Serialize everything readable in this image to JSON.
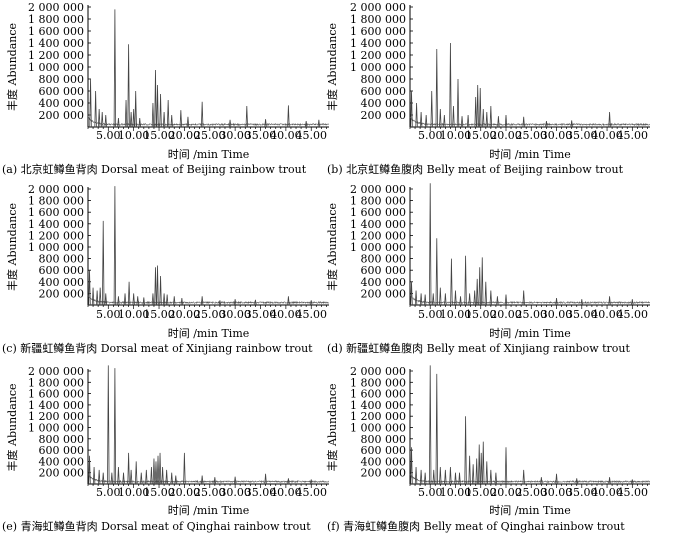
{
  "figure": {
    "y_axis_label": "丰度 Abundance",
    "x_axis_label": "时间 /min Time"
  },
  "chart_data": [
    {
      "type": "line",
      "caption": "(a) 北京虹鳟鱼背肉 Dorsal meat of Beijing rainbow trout",
      "xlabel": "时间 /min Time",
      "ylabel": "丰度 Abundance",
      "xlim": [
        1,
        48.5
      ],
      "ylim": [
        0,
        2000000
      ],
      "x_ticks": [
        "5.00",
        "10.00",
        "15.00",
        "20.00",
        "25.00",
        "30.00",
        "35.00",
        "40.00",
        "45.00"
      ],
      "y_ticks": [
        "200 000",
        "400 000",
        "600 000",
        "800 000",
        "1 000 000",
        "1 200 000",
        "1 400 000",
        "1 600 000",
        "1 800 000",
        "2 000 000"
      ],
      "grid": false,
      "peaks": [
        [
          1.5,
          800000
        ],
        [
          2.5,
          600000
        ],
        [
          3.2,
          300000
        ],
        [
          3.8,
          250000
        ],
        [
          4.5,
          200000
        ],
        [
          6.3,
          1960000
        ],
        [
          7.0,
          150000
        ],
        [
          8.5,
          450000
        ],
        [
          9.0,
          1380000
        ],
        [
          9.5,
          250000
        ],
        [
          10.0,
          300000
        ],
        [
          10.4,
          600000
        ],
        [
          11.2,
          150000
        ],
        [
          13.8,
          400000
        ],
        [
          14.3,
          950000
        ],
        [
          14.7,
          700000
        ],
        [
          15.3,
          550000
        ],
        [
          16.0,
          250000
        ],
        [
          16.8,
          450000
        ],
        [
          17.5,
          200000
        ],
        [
          19.3,
          280000
        ],
        [
          20.7,
          170000
        ],
        [
          23.5,
          420000
        ],
        [
          29.0,
          120000
        ],
        [
          32.3,
          350000
        ],
        [
          36.0,
          130000
        ],
        [
          40.5,
          360000
        ],
        [
          44.0,
          100000
        ],
        [
          46.5,
          120000
        ]
      ]
    },
    {
      "type": "line",
      "caption": "(b) 北京虹鳟鱼腹肉 Belly meat of Beijing rainbow trout",
      "xlabel": "时间 /min Time",
      "ylabel": "丰度 Abundance",
      "xlim": [
        1,
        48.5
      ],
      "ylim": [
        0,
        2000000
      ],
      "x_ticks": [
        "5.00",
        "10.00",
        "15.00",
        "20.00",
        "25.00",
        "30.00",
        "35.00",
        "40.00",
        "45.00"
      ],
      "y_ticks": [
        "200 000",
        "400 000",
        "600 000",
        "800 000",
        "1 000 000",
        "1 200 000",
        "1 400 000",
        "1 600 000",
        "1 800 000",
        "2 000 000"
      ],
      "grid": false,
      "peaks": [
        [
          1.3,
          600000
        ],
        [
          2.3,
          400000
        ],
        [
          3.2,
          250000
        ],
        [
          4.2,
          200000
        ],
        [
          5.3,
          600000
        ],
        [
          6.3,
          1300000
        ],
        [
          7.0,
          300000
        ],
        [
          7.8,
          200000
        ],
        [
          9.0,
          1400000
        ],
        [
          9.6,
          350000
        ],
        [
          10.5,
          800000
        ],
        [
          11.3,
          180000
        ],
        [
          12.5,
          200000
        ],
        [
          14.0,
          500000
        ],
        [
          14.4,
          700000
        ],
        [
          14.9,
          650000
        ],
        [
          15.5,
          300000
        ],
        [
          16.2,
          250000
        ],
        [
          17.0,
          350000
        ],
        [
          18.5,
          180000
        ],
        [
          20.0,
          200000
        ],
        [
          23.5,
          170000
        ],
        [
          28.0,
          100000
        ],
        [
          33.0,
          110000
        ],
        [
          40.5,
          250000
        ]
      ]
    },
    {
      "type": "line",
      "caption": "(c) 新疆虹鳟鱼背肉 Dorsal meat of Xinjiang rainbow trout",
      "xlabel": "时间 /min Time",
      "ylabel": "丰度 Abundance",
      "xlim": [
        1,
        48.5
      ],
      "ylim": [
        0,
        2000000
      ],
      "x_ticks": [
        "5.00",
        "10.00",
        "15.00",
        "20.00",
        "25.00",
        "30.00",
        "35.00",
        "40.00",
        "45.00"
      ],
      "y_ticks": [
        "200 000",
        "400 000",
        "600 000",
        "800 000",
        "1 000 000",
        "1 200 000",
        "1 400 000",
        "1 600 000",
        "1 800 000",
        "2 000 000"
      ],
      "grid": false,
      "peaks": [
        [
          1.3,
          600000
        ],
        [
          2.0,
          300000
        ],
        [
          2.8,
          250000
        ],
        [
          3.4,
          300000
        ],
        [
          4.0,
          1450000
        ],
        [
          4.5,
          200000
        ],
        [
          6.3,
          2050000
        ],
        [
          7.0,
          150000
        ],
        [
          8.3,
          200000
        ],
        [
          9.1,
          400000
        ],
        [
          10.0,
          200000
        ],
        [
          10.8,
          150000
        ],
        [
          12.0,
          130000
        ],
        [
          13.8,
          200000
        ],
        [
          14.3,
          650000
        ],
        [
          14.7,
          680000
        ],
        [
          15.3,
          500000
        ],
        [
          16.0,
          200000
        ],
        [
          16.6,
          180000
        ],
        [
          18.0,
          150000
        ],
        [
          19.5,
          120000
        ],
        [
          23.5,
          150000
        ],
        [
          27.0,
          80000
        ],
        [
          30.0,
          100000
        ],
        [
          34.0,
          90000
        ],
        [
          40.5,
          150000
        ],
        [
          45.0,
          80000
        ]
      ]
    },
    {
      "type": "line",
      "caption": "(d) 新疆虹鳟鱼腹肉 Belly meat of Xinjiang rainbow trout",
      "xlabel": "时间 /min Time",
      "ylabel": "丰度 Abundance",
      "xlim": [
        1,
        48.5
      ],
      "ylim": [
        0,
        2000000
      ],
      "x_ticks": [
        "5.00",
        "10.00",
        "15.00",
        "20.00",
        "25.00",
        "30.00",
        "35.00",
        "40.00",
        "45.00"
      ],
      "y_ticks": [
        "200 000",
        "400 000",
        "600 000",
        "800 000",
        "1 000 000",
        "1 200 000",
        "1 400 000",
        "1 600 000",
        "1 800 000",
        "2 000 000"
      ],
      "grid": false,
      "peaks": [
        [
          1.3,
          400000
        ],
        [
          2.2,
          250000
        ],
        [
          3.2,
          200000
        ],
        [
          4.0,
          180000
        ],
        [
          5.0,
          2100000
        ],
        [
          5.6,
          200000
        ],
        [
          6.3,
          1150000
        ],
        [
          7.0,
          300000
        ],
        [
          8.0,
          200000
        ],
        [
          9.2,
          800000
        ],
        [
          10.0,
          250000
        ],
        [
          11.0,
          150000
        ],
        [
          12.0,
          850000
        ],
        [
          12.8,
          200000
        ],
        [
          13.8,
          250000
        ],
        [
          14.3,
          450000
        ],
        [
          14.8,
          650000
        ],
        [
          15.3,
          820000
        ],
        [
          16.0,
          400000
        ],
        [
          17.0,
          250000
        ],
        [
          18.3,
          150000
        ],
        [
          20.0,
          180000
        ],
        [
          23.5,
          250000
        ],
        [
          30.0,
          120000
        ],
        [
          35.0,
          100000
        ],
        [
          40.5,
          150000
        ],
        [
          45.0,
          100000
        ]
      ]
    },
    {
      "type": "line",
      "caption": "(e) 青海虹鳟鱼背肉 Dorsal meat of Qinghai rainbow trout",
      "xlabel": "时间 /min Time",
      "ylabel": "丰度 Abundance",
      "xlim": [
        1,
        48.5
      ],
      "ylim": [
        0,
        2000000
      ],
      "x_ticks": [
        "5.00",
        "10.00",
        "15.00",
        "20.00",
        "25.00",
        "30.00",
        "35.00",
        "40.00",
        "45.00"
      ],
      "y_ticks": [
        "200 000",
        "400 000",
        "600 000",
        "800 000",
        "1 000 000",
        "1 200 000",
        "1 400 000",
        "1 600 000",
        "1 800 000",
        "2 000 000"
      ],
      "grid": false,
      "peaks": [
        [
          1.3,
          500000
        ],
        [
          2.2,
          300000
        ],
        [
          3.2,
          250000
        ],
        [
          4.0,
          200000
        ],
        [
          5.0,
          2100000
        ],
        [
          5.7,
          200000
        ],
        [
          6.3,
          2050000
        ],
        [
          7.0,
          300000
        ],
        [
          8.0,
          200000
        ],
        [
          9.0,
          550000
        ],
        [
          9.5,
          250000
        ],
        [
          10.5,
          400000
        ],
        [
          11.5,
          200000
        ],
        [
          12.5,
          250000
        ],
        [
          13.5,
          300000
        ],
        [
          14.0,
          450000
        ],
        [
          14.4,
          400000
        ],
        [
          14.8,
          500000
        ],
        [
          15.2,
          550000
        ],
        [
          15.7,
          300000
        ],
        [
          16.5,
          250000
        ],
        [
          17.5,
          200000
        ],
        [
          18.3,
          150000
        ],
        [
          20.0,
          550000
        ],
        [
          23.5,
          150000
        ],
        [
          26.0,
          120000
        ],
        [
          30.0,
          130000
        ],
        [
          36.0,
          180000
        ],
        [
          40.5,
          100000
        ],
        [
          45.0,
          80000
        ]
      ]
    },
    {
      "type": "line",
      "caption": "(f) 青海虹鳟鱼腹肉 Belly meat of Qinghai rainbow trout",
      "xlabel": "时间 /min Time",
      "ylabel": "丰度 Abundance",
      "xlim": [
        1,
        48.5
      ],
      "ylim": [
        0,
        2000000
      ],
      "x_ticks": [
        "5.00",
        "10.00",
        "15.00",
        "20.00",
        "25.00",
        "30.00",
        "35.00",
        "40.00",
        "45.00"
      ],
      "y_ticks": [
        "200 000",
        "400 000",
        "600 000",
        "800 000",
        "1 000 000",
        "1 200 000",
        "1 400 000",
        "1 600 000",
        "1 800 000",
        "2 000 000"
      ],
      "grid": false,
      "peaks": [
        [
          1.3,
          650000
        ],
        [
          2.2,
          300000
        ],
        [
          3.2,
          250000
        ],
        [
          4.0,
          200000
        ],
        [
          5.0,
          2100000
        ],
        [
          5.7,
          250000
        ],
        [
          6.3,
          1950000
        ],
        [
          7.0,
          300000
        ],
        [
          8.0,
          250000
        ],
        [
          9.0,
          300000
        ],
        [
          10.0,
          200000
        ],
        [
          10.8,
          200000
        ],
        [
          12.0,
          1200000
        ],
        [
          12.8,
          500000
        ],
        [
          13.5,
          350000
        ],
        [
          14.2,
          450000
        ],
        [
          14.7,
          700000
        ],
        [
          15.1,
          550000
        ],
        [
          15.5,
          750000
        ],
        [
          16.2,
          400000
        ],
        [
          17.0,
          250000
        ],
        [
          18.0,
          200000
        ],
        [
          20.0,
          650000
        ],
        [
          23.5,
          250000
        ],
        [
          27.0,
          120000
        ],
        [
          30.0,
          180000
        ],
        [
          34.0,
          100000
        ],
        [
          40.5,
          120000
        ],
        [
          45.0,
          80000
        ]
      ]
    }
  ]
}
